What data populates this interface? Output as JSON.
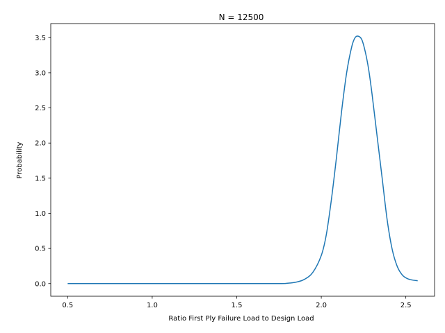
{
  "chart_data": {
    "type": "line",
    "title": "N = 12500",
    "xlabel": "Ratio First Ply Failure Load to Design Load",
    "ylabel": "Probability",
    "xlim": [
      0.4,
      2.67
    ],
    "ylim": [
      -0.18,
      3.7
    ],
    "xticks": [
      0.5,
      1.0,
      1.5,
      2.0,
      2.5
    ],
    "xtick_labels": [
      "0.5",
      "1.0",
      "1.5",
      "2.0",
      "2.5"
    ],
    "yticks": [
      0.0,
      0.5,
      1.0,
      1.5,
      2.0,
      2.5,
      3.0,
      3.5
    ],
    "ytick_labels": [
      "0.0",
      "0.5",
      "1.0",
      "1.5",
      "2.0",
      "2.5",
      "3.0",
      "3.5"
    ],
    "grid": false,
    "series": [
      {
        "color": "#1f77b4",
        "x": [
          0.5,
          1.0,
          1.5,
          1.75,
          1.8,
          1.85,
          1.9,
          1.95,
          2.0,
          2.03,
          2.06,
          2.09,
          2.12,
          2.15,
          2.18,
          2.2,
          2.22,
          2.24,
          2.26,
          2.28,
          2.3,
          2.33,
          2.36,
          2.39,
          2.42,
          2.45,
          2.48,
          2.51,
          2.54,
          2.57
        ],
        "y": [
          0.0,
          0.0,
          0.0,
          0.0,
          0.005,
          0.02,
          0.06,
          0.16,
          0.4,
          0.7,
          1.2,
          1.8,
          2.45,
          3.0,
          3.37,
          3.5,
          3.52,
          3.47,
          3.3,
          3.05,
          2.7,
          2.1,
          1.5,
          0.9,
          0.48,
          0.24,
          0.12,
          0.07,
          0.05,
          0.04
        ]
      }
    ]
  }
}
